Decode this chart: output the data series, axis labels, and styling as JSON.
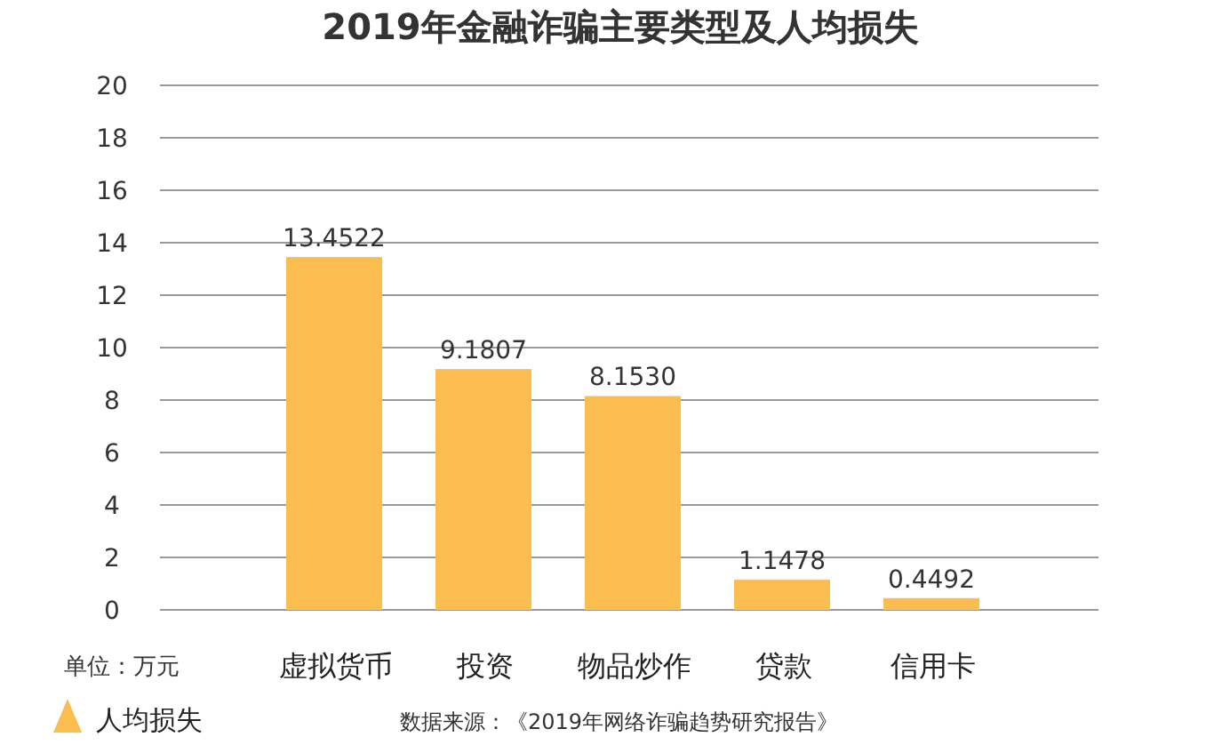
{
  "chart_data": {
    "type": "bar",
    "title": "2019年金融诈骗主要类型及人均损失",
    "categories": [
      "虚拟货币",
      "投资",
      "物品炒作",
      "贷款",
      "信用卡"
    ],
    "series": [
      {
        "name": "人均损失",
        "color": "#fbbd4f",
        "values": [
          13.4522,
          9.1807,
          8.153,
          1.1478,
          0.4492
        ],
        "value_labels": [
          "13.4522",
          "9.1807",
          "8.1530",
          "1.1478",
          "0.4492"
        ]
      }
    ],
    "ylim": [
      0,
      20
    ],
    "yticks": [
      0,
      2,
      4,
      6,
      8,
      10,
      12,
      14,
      16,
      18,
      20
    ],
    "grid": "y",
    "legend": "bottom left",
    "annotations": [
      "单位：万元",
      "数据来源：《2019年网络诈骗趋势研究报告》"
    ]
  }
}
